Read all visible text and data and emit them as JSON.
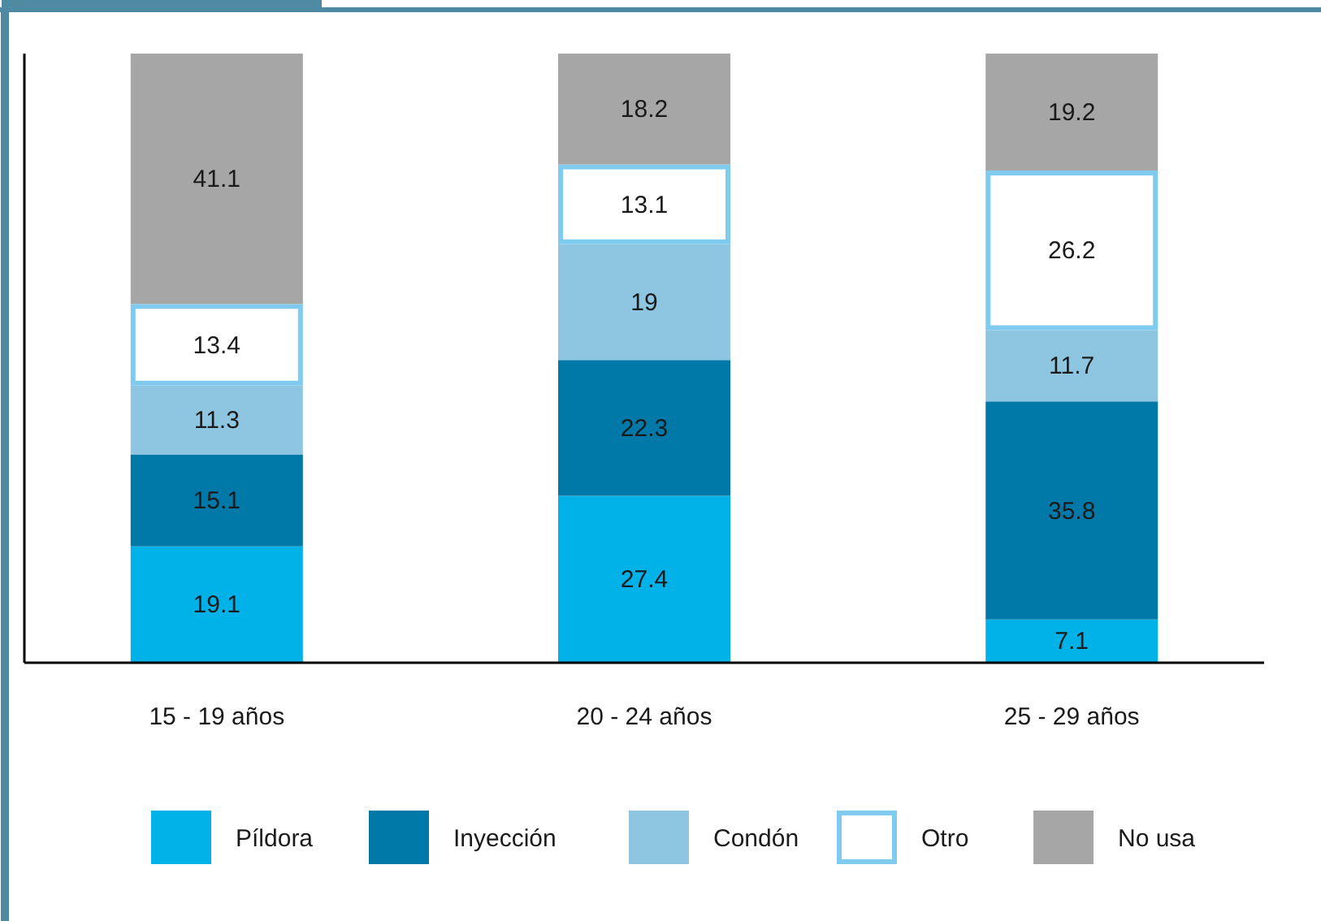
{
  "chart_data": {
    "type": "bar",
    "stacked": true,
    "data_labels": true,
    "categories": [
      "15 - 19 años",
      "20 - 24 años",
      "25 - 29 años"
    ],
    "series": [
      {
        "name": "Píldora",
        "color": "#00b2e8",
        "values": [
          19.1,
          27.4,
          7.1
        ]
      },
      {
        "name": "Inyección",
        "color": "#0079a9",
        "values": [
          15.1,
          22.3,
          35.8
        ]
      },
      {
        "name": "Condón",
        "color": "#8ec5e0",
        "values": [
          11.3,
          19,
          11.7
        ]
      },
      {
        "name": "Otro",
        "color": "#ffffff",
        "values": [
          13.4,
          13.1,
          26.2
        ]
      },
      {
        "name": "No usa",
        "color": "#a6a6a6",
        "values": [
          41.1,
          18.2,
          19.2
        ]
      }
    ],
    "ylim": [
      0,
      100
    ],
    "tick_labels": "x",
    "legend": "bottom"
  }
}
